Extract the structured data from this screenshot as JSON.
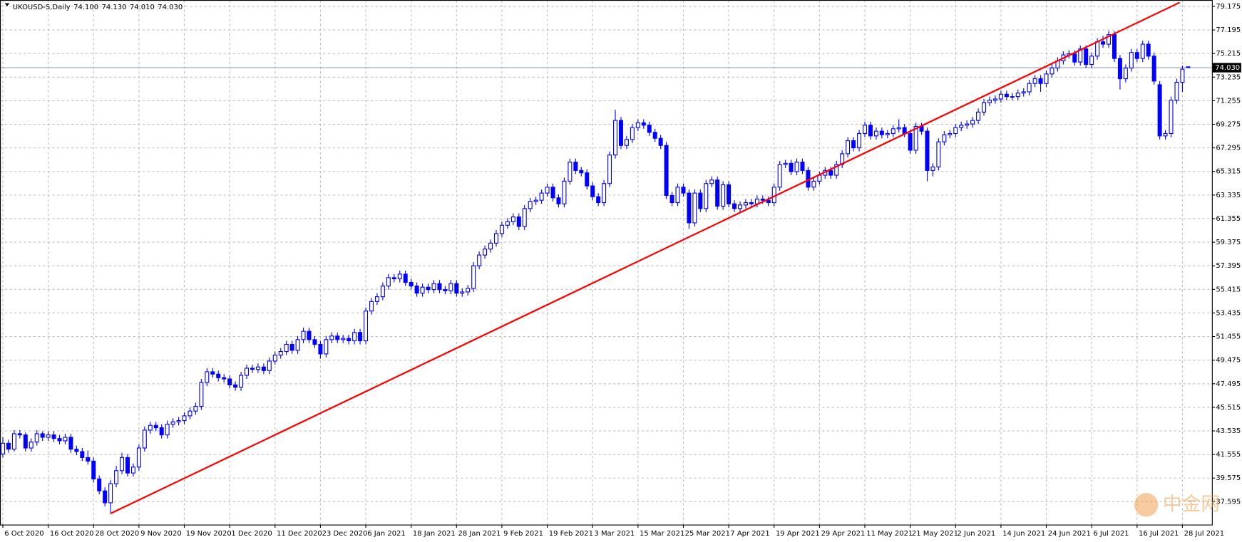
{
  "chart_data": {
    "type": "candlestick",
    "title": "UKOUSD-S,Daily",
    "header_labels": [
      "74.100",
      "74.130",
      "74.010",
      "74.030"
    ],
    "up_color": "#ffffff",
    "down_color": "#0000ff",
    "edge_color": "#0000ff",
    "grid": true,
    "grid_color": "#c0c0c0",
    "ylim": [
      35.67,
      79.71
    ],
    "yticks": [
      79.175,
      77.195,
      75.215,
      73.235,
      71.255,
      69.275,
      67.295,
      65.315,
      63.335,
      61.355,
      59.375,
      57.395,
      55.415,
      53.435,
      51.455,
      49.475,
      47.495,
      45.515,
      43.535,
      41.555,
      39.575,
      37.595
    ],
    "xlim": [
      -0.5,
      213.2
    ],
    "xticks": [
      {
        "value": 0,
        "label": "6 Oct 2020"
      },
      {
        "value": 8,
        "label": "16 Oct 2020"
      },
      {
        "value": 16,
        "label": "28 Oct 2020"
      },
      {
        "value": 24,
        "label": "9 Nov 2020"
      },
      {
        "value": 32,
        "label": "19 Nov 2020"
      },
      {
        "value": 40,
        "label": "1 Dec 2020"
      },
      {
        "value": 48,
        "label": "11 Dec 2020"
      },
      {
        "value": 56,
        "label": "23 Dec 2020"
      },
      {
        "value": 64,
        "label": "6 Jan 2021"
      },
      {
        "value": 72,
        "label": "18 Jan 2021"
      },
      {
        "value": 80,
        "label": "28 Jan 2021"
      },
      {
        "value": 88,
        "label": "9 Feb 2021"
      },
      {
        "value": 96,
        "label": "19 Feb 2021"
      },
      {
        "value": 104,
        "label": "3 Mar 2021"
      },
      {
        "value": 112,
        "label": "15 Mar 2021"
      },
      {
        "value": 120,
        "label": "25 Mar 2021"
      },
      {
        "value": 128,
        "label": "7 Apr 2021"
      },
      {
        "value": 136,
        "label": "19 Apr 2021"
      },
      {
        "value": 144,
        "label": "29 Apr 2021"
      },
      {
        "value": 152,
        "label": "11 May 2021"
      },
      {
        "value": 160,
        "label": "21 May 2021"
      },
      {
        "value": 168,
        "label": "2 Jun 2021"
      },
      {
        "value": 176,
        "label": "14 Jun 2021"
      },
      {
        "value": 184,
        "label": "24 Jun 2021"
      },
      {
        "value": 192,
        "label": "6 Jul 2021"
      },
      {
        "value": 200,
        "label": "16 Jul 2021"
      },
      {
        "value": 208,
        "label": "28 Jul 2021"
      }
    ],
    "price_line": {
      "value": 74.03,
      "label": "74.030",
      "color": "#8c9bb0"
    },
    "trendline": {
      "color": "#ff0000",
      "x": [
        19,
        207.5
      ],
      "y": [
        36.6,
        79.5
      ]
    },
    "watermark": "中金网",
    "ohlc": [
      [
        41.6,
        43.0,
        41.3,
        42.5
      ],
      [
        42.5,
        42.8,
        41.7,
        42.0
      ],
      [
        42.0,
        43.6,
        41.8,
        43.3
      ],
      [
        43.3,
        43.6,
        42.9,
        43.2
      ],
      [
        43.2,
        43.4,
        41.8,
        42.1
      ],
      [
        42.1,
        42.9,
        41.8,
        42.6
      ],
      [
        42.6,
        43.6,
        42.3,
        43.3
      ],
      [
        43.3,
        43.5,
        42.7,
        43.0
      ],
      [
        43.0,
        43.5,
        42.7,
        43.2
      ],
      [
        43.2,
        43.5,
        42.6,
        42.9
      ],
      [
        42.9,
        43.2,
        42.4,
        42.7
      ],
      [
        42.7,
        43.3,
        42.4,
        43.0
      ],
      [
        43.0,
        43.3,
        41.7,
        42.0
      ],
      [
        42.0,
        42.3,
        41.5,
        41.8
      ],
      [
        41.8,
        42.1,
        41.0,
        41.3
      ],
      [
        41.3,
        41.9,
        40.7,
        41.0
      ],
      [
        41.0,
        41.3,
        39.2,
        39.5
      ],
      [
        39.5,
        39.8,
        38.2,
        38.5
      ],
      [
        38.5,
        38.8,
        37.2,
        37.5
      ],
      [
        37.5,
        39.4,
        36.6,
        39.1
      ],
      [
        39.1,
        40.6,
        38.8,
        40.2
      ],
      [
        40.2,
        41.7,
        39.9,
        41.3
      ],
      [
        41.3,
        41.6,
        39.7,
        40.0
      ],
      [
        40.0,
        40.8,
        39.7,
        40.5
      ],
      [
        40.5,
        42.4,
        40.2,
        42.1
      ],
      [
        42.1,
        43.9,
        41.8,
        43.6
      ],
      [
        43.6,
        44.3,
        43.3,
        44.0
      ],
      [
        44.0,
        44.3,
        43.5,
        43.8
      ],
      [
        43.8,
        44.1,
        42.9,
        43.2
      ],
      [
        43.2,
        44.4,
        42.9,
        44.1
      ],
      [
        44.1,
        44.6,
        43.8,
        44.3
      ],
      [
        44.3,
        44.7,
        44.0,
        44.4
      ],
      [
        44.4,
        45.1,
        44.1,
        44.8
      ],
      [
        44.8,
        45.5,
        44.5,
        45.2
      ],
      [
        45.2,
        45.9,
        44.9,
        45.6
      ],
      [
        45.6,
        47.9,
        45.3,
        47.6
      ],
      [
        47.6,
        48.8,
        47.3,
        48.5
      ],
      [
        48.5,
        48.8,
        48.0,
        48.3
      ],
      [
        48.3,
        48.6,
        47.7,
        48.0
      ],
      [
        48.0,
        48.3,
        47.6,
        47.9
      ],
      [
        47.9,
        48.2,
        47.1,
        47.4
      ],
      [
        47.4,
        47.7,
        46.9,
        47.2
      ],
      [
        47.2,
        48.5,
        46.9,
        48.2
      ],
      [
        48.2,
        49.1,
        47.9,
        48.8
      ],
      [
        48.8,
        49.1,
        48.4,
        48.7
      ],
      [
        48.7,
        49.2,
        48.4,
        48.9
      ],
      [
        48.9,
        49.2,
        48.3,
        48.6
      ],
      [
        48.6,
        49.7,
        48.3,
        49.4
      ],
      [
        49.4,
        50.2,
        49.1,
        49.9
      ],
      [
        49.9,
        50.5,
        49.6,
        50.2
      ],
      [
        50.2,
        51.1,
        49.9,
        50.8
      ],
      [
        50.8,
        51.1,
        50.0,
        50.3
      ],
      [
        50.3,
        51.5,
        50.0,
        51.2
      ],
      [
        51.2,
        52.2,
        50.9,
        51.9
      ],
      [
        51.9,
        52.2,
        50.9,
        51.2
      ],
      [
        51.2,
        51.5,
        50.5,
        50.8
      ],
      [
        50.8,
        51.1,
        49.6,
        50.0
      ],
      [
        50.0,
        51.5,
        49.7,
        51.2
      ],
      [
        51.2,
        51.8,
        50.9,
        51.5
      ],
      [
        51.5,
        51.8,
        50.9,
        51.2
      ],
      [
        51.2,
        51.6,
        50.9,
        51.3
      ],
      [
        51.3,
        51.6,
        50.8,
        51.1
      ],
      [
        51.1,
        52.1,
        50.8,
        51.8
      ],
      [
        51.8,
        52.1,
        50.8,
        51.1
      ],
      [
        51.1,
        53.9,
        50.8,
        53.6
      ],
      [
        53.6,
        54.7,
        53.3,
        54.4
      ],
      [
        54.4,
        55.1,
        54.1,
        54.8
      ],
      [
        54.8,
        56.0,
        54.5,
        55.7
      ],
      [
        55.7,
        56.7,
        55.4,
        56.4
      ],
      [
        56.4,
        56.7,
        56.0,
        56.3
      ],
      [
        56.3,
        57.0,
        56.0,
        56.7
      ],
      [
        56.7,
        57.0,
        55.7,
        56.0
      ],
      [
        56.0,
        56.3,
        55.4,
        55.7
      ],
      [
        55.7,
        56.0,
        54.8,
        55.1
      ],
      [
        55.1,
        55.9,
        54.8,
        55.6
      ],
      [
        55.6,
        55.9,
        55.1,
        55.4
      ],
      [
        55.4,
        56.2,
        55.1,
        55.9
      ],
      [
        55.9,
        56.2,
        55.1,
        55.4
      ],
      [
        55.4,
        55.7,
        55.0,
        55.3
      ],
      [
        55.3,
        56.2,
        55.0,
        55.9
      ],
      [
        55.9,
        56.2,
        54.8,
        55.1
      ],
      [
        55.1,
        55.5,
        54.8,
        55.2
      ],
      [
        55.2,
        55.8,
        54.9,
        55.5
      ],
      [
        55.5,
        57.7,
        55.2,
        57.4
      ],
      [
        57.4,
        58.6,
        57.1,
        58.3
      ],
      [
        58.3,
        59.1,
        58.0,
        58.8
      ],
      [
        58.8,
        59.6,
        58.5,
        59.3
      ],
      [
        59.3,
        60.4,
        59.0,
        60.1
      ],
      [
        60.1,
        61.1,
        59.8,
        60.8
      ],
      [
        60.8,
        61.4,
        60.5,
        61.1
      ],
      [
        61.1,
        61.8,
        60.8,
        61.5
      ],
      [
        61.5,
        61.8,
        60.4,
        60.7
      ],
      [
        60.7,
        62.5,
        60.4,
        62.2
      ],
      [
        62.2,
        63.1,
        61.9,
        62.8
      ],
      [
        62.8,
        63.2,
        62.5,
        62.9
      ],
      [
        62.9,
        63.8,
        62.6,
        63.5
      ],
      [
        63.5,
        64.3,
        63.2,
        64.0
      ],
      [
        64.0,
        64.3,
        62.8,
        63.1
      ],
      [
        63.1,
        63.4,
        62.3,
        62.6
      ],
      [
        62.6,
        64.8,
        62.3,
        64.5
      ],
      [
        64.5,
        66.4,
        64.2,
        66.1
      ],
      [
        66.1,
        66.4,
        65.1,
        65.4
      ],
      [
        65.4,
        65.7,
        64.9,
        65.2
      ],
      [
        65.2,
        65.5,
        63.8,
        64.1
      ],
      [
        64.1,
        64.4,
        62.9,
        63.2
      ],
      [
        63.2,
        63.5,
        62.4,
        62.7
      ],
      [
        62.7,
        64.6,
        62.4,
        64.3
      ],
      [
        64.3,
        67.0,
        64.0,
        66.7
      ],
      [
        66.7,
        70.5,
        66.4,
        69.6
      ],
      [
        69.6,
        69.9,
        67.2,
        67.5
      ],
      [
        67.5,
        68.3,
        67.2,
        68.0
      ],
      [
        68.0,
        69.3,
        67.7,
        69.0
      ],
      [
        69.0,
        69.7,
        68.7,
        69.4
      ],
      [
        69.4,
        69.7,
        68.9,
        69.2
      ],
      [
        69.2,
        69.5,
        68.3,
        68.6
      ],
      [
        68.6,
        68.9,
        67.8,
        68.1
      ],
      [
        68.1,
        68.4,
        67.2,
        67.5
      ],
      [
        67.5,
        67.8,
        63.0,
        63.3
      ],
      [
        63.3,
        63.6,
        62.4,
        62.7
      ],
      [
        62.7,
        64.3,
        62.4,
        64.0
      ],
      [
        64.0,
        64.3,
        63.2,
        63.5
      ],
      [
        63.5,
        63.8,
        60.5,
        61.0
      ],
      [
        61.0,
        63.8,
        60.7,
        63.5
      ],
      [
        63.5,
        63.8,
        61.9,
        62.2
      ],
      [
        62.2,
        64.6,
        61.9,
        64.3
      ],
      [
        64.3,
        64.9,
        64.0,
        64.6
      ],
      [
        64.6,
        64.9,
        62.1,
        62.4
      ],
      [
        62.4,
        64.5,
        62.1,
        64.2
      ],
      [
        64.2,
        64.5,
        62.3,
        62.6
      ],
      [
        62.6,
        62.9,
        61.9,
        62.2
      ],
      [
        62.2,
        62.8,
        61.9,
        62.5
      ],
      [
        62.5,
        63.0,
        62.2,
        62.7
      ],
      [
        62.7,
        63.0,
        62.3,
        62.6
      ],
      [
        62.6,
        63.3,
        62.3,
        63.0
      ],
      [
        63.0,
        63.3,
        62.6,
        62.9
      ],
      [
        62.9,
        63.2,
        62.4,
        62.7
      ],
      [
        62.7,
        64.3,
        62.4,
        64.0
      ],
      [
        64.0,
        66.2,
        63.7,
        65.9
      ],
      [
        65.9,
        66.3,
        65.6,
        66.0
      ],
      [
        66.0,
        66.3,
        65.0,
        65.3
      ],
      [
        65.3,
        66.4,
        65.0,
        66.1
      ],
      [
        66.1,
        66.4,
        65.1,
        65.4
      ],
      [
        65.4,
        65.7,
        63.7,
        64.0
      ],
      [
        64.0,
        64.8,
        63.7,
        64.5
      ],
      [
        64.5,
        65.3,
        64.2,
        65.0
      ],
      [
        65.0,
        65.7,
        64.7,
        65.4
      ],
      [
        65.4,
        65.7,
        64.7,
        65.0
      ],
      [
        65.0,
        66.2,
        64.7,
        65.9
      ],
      [
        65.9,
        67.1,
        65.6,
        66.8
      ],
      [
        66.8,
        68.2,
        66.5,
        67.9
      ],
      [
        67.9,
        68.2,
        67.0,
        67.3
      ],
      [
        67.3,
        68.8,
        67.0,
        68.5
      ],
      [
        68.5,
        69.5,
        68.2,
        69.2
      ],
      [
        69.2,
        69.5,
        68.0,
        68.3
      ],
      [
        68.3,
        69.0,
        68.0,
        68.7
      ],
      [
        68.7,
        69.0,
        68.1,
        68.4
      ],
      [
        68.4,
        68.8,
        68.1,
        68.5
      ],
      [
        68.5,
        69.2,
        68.2,
        68.9
      ],
      [
        68.9,
        69.7,
        68.6,
        69.0
      ],
      [
        69.0,
        69.3,
        68.2,
        68.5
      ],
      [
        68.5,
        68.8,
        66.8,
        67.1
      ],
      [
        67.1,
        69.4,
        66.8,
        69.1
      ],
      [
        69.1,
        69.4,
        68.4,
        68.7
      ],
      [
        68.7,
        69.0,
        64.5,
        65.4
      ],
      [
        65.4,
        66.0,
        64.9,
        65.7
      ],
      [
        65.7,
        68.1,
        65.4,
        67.8
      ],
      [
        67.8,
        68.7,
        67.5,
        68.4
      ],
      [
        68.4,
        68.8,
        68.1,
        68.5
      ],
      [
        68.5,
        69.3,
        68.2,
        69.0
      ],
      [
        69.0,
        69.5,
        68.7,
        69.2
      ],
      [
        69.2,
        69.6,
        68.9,
        69.3
      ],
      [
        69.3,
        69.9,
        69.0,
        69.6
      ],
      [
        69.6,
        70.6,
        69.3,
        70.3
      ],
      [
        70.3,
        71.4,
        70.0,
        71.1
      ],
      [
        71.1,
        71.6,
        70.8,
        71.3
      ],
      [
        71.3,
        71.7,
        71.0,
        71.4
      ],
      [
        71.4,
        72.1,
        71.1,
        71.8
      ],
      [
        71.8,
        72.1,
        71.3,
        71.6
      ],
      [
        71.6,
        71.9,
        71.3,
        71.6
      ],
      [
        71.6,
        72.2,
        71.3,
        71.9
      ],
      [
        71.9,
        72.3,
        71.6,
        72.0
      ],
      [
        72.0,
        73.0,
        71.7,
        72.7
      ],
      [
        72.7,
        73.4,
        72.4,
        73.1
      ],
      [
        73.1,
        73.4,
        72.0,
        72.7
      ],
      [
        72.7,
        73.8,
        72.4,
        73.5
      ],
      [
        73.5,
        74.3,
        73.2,
        74.0
      ],
      [
        74.0,
        74.9,
        73.7,
        74.6
      ],
      [
        74.6,
        75.4,
        74.3,
        75.1
      ],
      [
        75.1,
        75.5,
        74.8,
        75.2
      ],
      [
        75.2,
        75.5,
        74.2,
        74.5
      ],
      [
        74.5,
        75.9,
        74.2,
        75.6
      ],
      [
        75.6,
        75.9,
        74.0,
        74.3
      ],
      [
        74.3,
        75.3,
        74.0,
        75.0
      ],
      [
        75.0,
        76.5,
        74.7,
        76.2
      ],
      [
        76.2,
        76.7,
        75.7,
        76.0
      ],
      [
        76.0,
        77.1,
        75.7,
        76.8
      ],
      [
        76.8,
        77.1,
        74.5,
        74.8
      ],
      [
        74.8,
        75.1,
        72.2,
        73.1
      ],
      [
        73.1,
        74.3,
        72.8,
        74.0
      ],
      [
        74.0,
        75.6,
        73.7,
        75.3
      ],
      [
        75.3,
        75.6,
        74.5,
        74.8
      ],
      [
        74.8,
        76.3,
        74.5,
        76.0
      ],
      [
        76.0,
        76.3,
        74.7,
        75.0
      ],
      [
        75.0,
        75.3,
        72.6,
        72.9
      ],
      [
        72.6,
        72.9,
        68.0,
        68.3
      ],
      [
        68.3,
        68.8,
        68.0,
        68.5
      ],
      [
        68.5,
        71.6,
        68.2,
        71.3
      ],
      [
        71.3,
        73.1,
        71.0,
        72.8
      ],
      [
        72.8,
        74.2,
        72.0,
        73.9
      ],
      [
        74.1,
        74.13,
        74.01,
        74.03
      ]
    ]
  }
}
